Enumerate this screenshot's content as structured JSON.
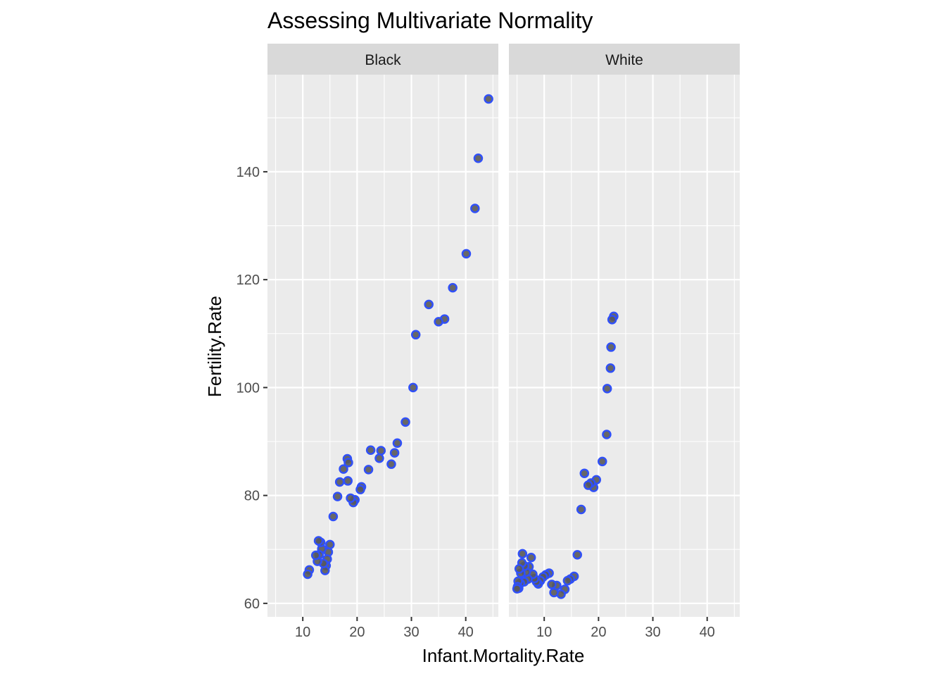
{
  "chart_data": {
    "type": "scatter",
    "title": "Assessing Multivariate Normality",
    "xlabel": "Infant.Mortality.Rate",
    "ylabel": "Fertility.Rate",
    "xlim": [
      3.5,
      46
    ],
    "ylim": [
      57.5,
      158
    ],
    "x_ticks": [
      10,
      20,
      30,
      40
    ],
    "y_ticks": [
      60,
      80,
      100,
      120,
      140
    ],
    "x_tick_labels": [
      "10",
      "20",
      "30",
      "40"
    ],
    "y_tick_labels": [
      "60",
      "80",
      "100",
      "120",
      "140"
    ],
    "grid": true,
    "colors": {
      "panel_bg": "#ebebeb",
      "strip_bg": "#d9d9d9",
      "grid": "#ffffff",
      "point_fill": "#595959",
      "point_outline": "#3050f8"
    },
    "facets": [
      {
        "label": "Black",
        "points": [
          [
            44.2,
            153.5
          ],
          [
            42.3,
            142.5
          ],
          [
            41.7,
            133.2
          ],
          [
            40.1,
            124.8
          ],
          [
            37.6,
            118.5
          ],
          [
            36.1,
            112.7
          ],
          [
            35.0,
            112.2
          ],
          [
            33.2,
            115.4
          ],
          [
            30.8,
            109.8
          ],
          [
            30.3,
            100.0
          ],
          [
            28.9,
            93.6
          ],
          [
            27.4,
            89.7
          ],
          [
            26.9,
            87.9
          ],
          [
            26.3,
            85.8
          ],
          [
            24.4,
            88.3
          ],
          [
            24.1,
            86.9
          ],
          [
            22.5,
            88.4
          ],
          [
            22.1,
            84.8
          ],
          [
            20.8,
            81.6
          ],
          [
            20.6,
            81.1
          ],
          [
            19.6,
            79.2
          ],
          [
            19.3,
            78.7
          ],
          [
            18.8,
            79.5
          ],
          [
            18.2,
            86.8
          ],
          [
            18.4,
            86.1
          ],
          [
            18.3,
            82.7
          ],
          [
            17.5,
            84.9
          ],
          [
            16.8,
            82.5
          ],
          [
            16.4,
            79.8
          ],
          [
            15.6,
            76.1
          ],
          [
            15.0,
            70.9
          ],
          [
            14.7,
            69.5
          ],
          [
            14.5,
            68.2
          ],
          [
            14.3,
            67.0
          ],
          [
            14.1,
            66.1
          ],
          [
            13.8,
            67.4
          ],
          [
            13.5,
            70.1
          ],
          [
            13.3,
            71.3
          ],
          [
            13.0,
            69.0
          ],
          [
            12.9,
            71.6
          ],
          [
            12.7,
            67.8
          ],
          [
            12.4,
            68.9
          ],
          [
            11.2,
            66.2
          ],
          [
            10.9,
            65.4
          ]
        ]
      },
      {
        "label": "White",
        "points": [
          [
            22.8,
            113.2
          ],
          [
            22.5,
            112.6
          ],
          [
            22.3,
            107.5
          ],
          [
            22.2,
            103.6
          ],
          [
            21.6,
            99.8
          ],
          [
            21.5,
            91.3
          ],
          [
            20.7,
            86.3
          ],
          [
            19.6,
            82.9
          ],
          [
            19.1,
            81.5
          ],
          [
            18.6,
            82.3
          ],
          [
            18.1,
            81.9
          ],
          [
            17.4,
            84.1
          ],
          [
            16.8,
            77.4
          ],
          [
            16.1,
            69.0
          ],
          [
            15.5,
            65.0
          ],
          [
            14.8,
            64.5
          ],
          [
            14.3,
            64.2
          ],
          [
            13.8,
            62.6
          ],
          [
            13.1,
            61.7
          ],
          [
            12.3,
            63.3
          ],
          [
            11.8,
            62.0
          ],
          [
            11.4,
            63.5
          ],
          [
            10.9,
            65.6
          ],
          [
            10.3,
            65.3
          ],
          [
            9.8,
            64.9
          ],
          [
            9.3,
            64.2
          ],
          [
            8.9,
            63.6
          ],
          [
            8.6,
            64.0
          ],
          [
            8.2,
            64.6
          ],
          [
            7.9,
            65.4
          ],
          [
            7.6,
            68.5
          ],
          [
            7.2,
            66.8
          ],
          [
            7.0,
            64.5
          ],
          [
            6.7,
            65.8
          ],
          [
            6.4,
            66.9
          ],
          [
            6.3,
            64.0
          ],
          [
            6.0,
            69.2
          ],
          [
            5.9,
            67.5
          ],
          [
            5.7,
            65.6
          ],
          [
            5.6,
            63.7
          ],
          [
            5.4,
            66.4
          ],
          [
            5.3,
            62.8
          ],
          [
            5.2,
            64.1
          ],
          [
            5.1,
            63.1
          ],
          [
            5.0,
            62.7
          ]
        ]
      }
    ]
  }
}
